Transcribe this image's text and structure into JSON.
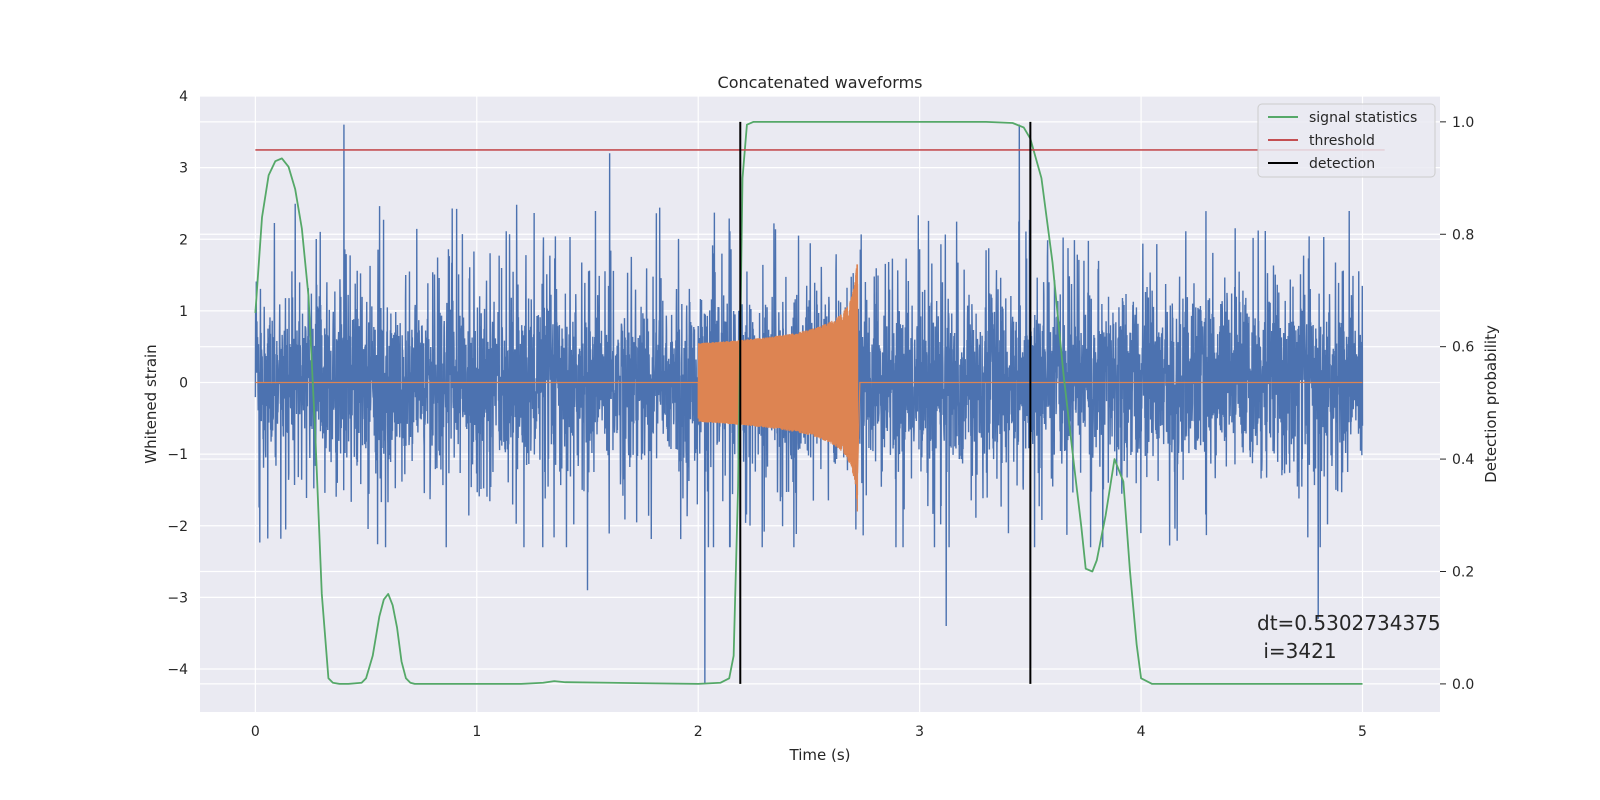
{
  "chart_data": {
    "type": "line",
    "title": "Concatenated waveforms",
    "xlabel": "Time (s)",
    "ylabel": "Whitened strain",
    "ylabel_right": "Detection probability",
    "xlim": [
      -0.25,
      5.35
    ],
    "ylim": [
      -4.6,
      4.0
    ],
    "ylim_right": [
      -0.05,
      1.046
    ],
    "x_ticks": [
      0,
      1,
      2,
      3,
      4,
      5
    ],
    "y_ticks": [
      -4,
      -3,
      -2,
      -1,
      0,
      1,
      2,
      3,
      4
    ],
    "y_ticks_right": [
      0.0,
      0.2,
      0.4,
      0.6,
      0.8,
      1.0
    ],
    "grid": true,
    "legend_position": "top-right",
    "legend": [
      {
        "label": "signal statistics",
        "color": "#55a868"
      },
      {
        "label": "threshold",
        "color": "#c44e52"
      },
      {
        "label": "detection",
        "color": "#000000"
      }
    ],
    "annotation": {
      "line1": "dt=0.5302734375",
      "line2": " i=3421"
    },
    "series": [
      {
        "kind": "noise",
        "color": "#4c72b0",
        "x_range": [
          0,
          5
        ],
        "typical_envelope": [
          -1.7,
          2.4
        ],
        "spikes": [
          {
            "x": 0.4,
            "y": 3.6
          },
          {
            "x": 1.6,
            "y": 3.2
          },
          {
            "x": 2.03,
            "y": -4.2
          },
          {
            "x": 3.45,
            "y": 3.6
          },
          {
            "x": 3.5,
            "y": 3.5
          },
          {
            "x": 4.8,
            "y": -3.3
          },
          {
            "x": 3.12,
            "y": -3.4
          },
          {
            "x": 1.5,
            "y": -2.9
          }
        ]
      },
      {
        "kind": "chirp",
        "color": "#dd8452",
        "x_range": [
          0,
          5
        ],
        "start": 2.0,
        "peak": 2.72,
        "end": 2.73,
        "amp_start": 0.55,
        "amp_peak_pos": 1.65,
        "amp_peak_neg": -1.8
      },
      {
        "name": "signal statistics",
        "axis": "right",
        "color": "#55a868",
        "x": [
          0.0,
          0.03,
          0.06,
          0.09,
          0.12,
          0.15,
          0.18,
          0.21,
          0.24,
          0.27,
          0.3,
          0.33,
          0.35,
          0.38,
          0.42,
          0.48,
          0.5,
          0.53,
          0.56,
          0.58,
          0.6,
          0.62,
          0.64,
          0.66,
          0.68,
          0.7,
          0.72,
          0.75,
          0.8,
          1.0,
          1.2,
          1.3,
          1.35,
          1.4,
          1.6,
          2.0,
          2.1,
          2.14,
          2.16,
          2.18,
          2.2,
          2.22,
          2.25,
          2.3,
          3.3,
          3.42,
          3.47,
          3.5,
          3.55,
          3.6,
          3.65,
          3.7,
          3.73,
          3.75,
          3.78,
          3.8,
          3.84,
          3.88,
          3.92,
          3.95,
          3.98,
          4.0,
          4.05,
          4.5,
          5.0
        ],
        "y": [
          0.66,
          0.83,
          0.905,
          0.93,
          0.935,
          0.92,
          0.88,
          0.81,
          0.69,
          0.45,
          0.16,
          0.01,
          0.002,
          0.0,
          0.0,
          0.002,
          0.01,
          0.05,
          0.12,
          0.15,
          0.16,
          0.14,
          0.1,
          0.04,
          0.01,
          0.002,
          0.0,
          0.0,
          0.0,
          0.0,
          0.0,
          0.002,
          0.005,
          0.003,
          0.002,
          0.0,
          0.002,
          0.01,
          0.05,
          0.35,
          0.9,
          0.995,
          1.0,
          1.0,
          1.0,
          0.998,
          0.99,
          0.97,
          0.9,
          0.75,
          0.55,
          0.38,
          0.28,
          0.205,
          0.2,
          0.22,
          0.3,
          0.4,
          0.36,
          0.2,
          0.07,
          0.01,
          0.0,
          0.0,
          0.0
        ]
      },
      {
        "name": "threshold",
        "axis": "right",
        "color": "#c44e52",
        "x": [
          0,
          5.1
        ],
        "y": [
          0.95,
          0.95
        ]
      },
      {
        "name": "detection",
        "axis": "right",
        "color": "#000000",
        "x_values": [
          2.19,
          3.5
        ],
        "y_range": [
          0.0,
          1.0
        ]
      }
    ]
  }
}
